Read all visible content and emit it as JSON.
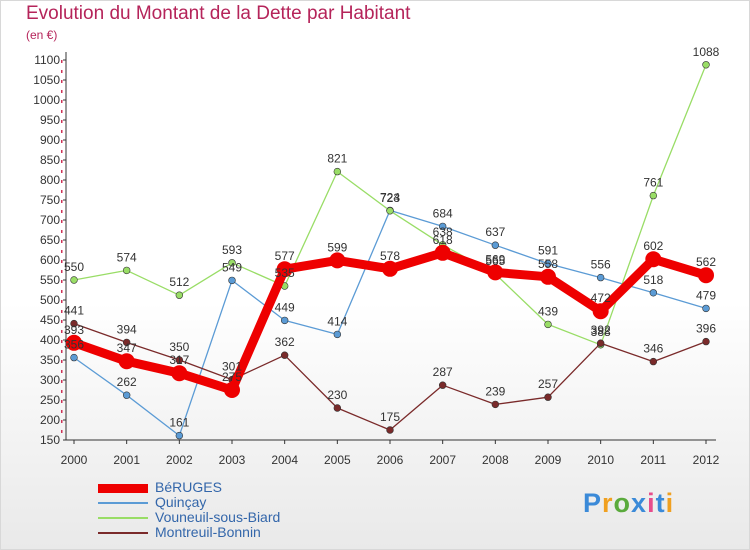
{
  "title": "Evolution du Montant de la Dette par Habitant",
  "subtitle": "(en €)",
  "logo": {
    "text": "Proxiti",
    "colors": [
      "#3b8ad8",
      "#f0a020",
      "#5aaa3c",
      "#3b8ad8",
      "#e84c8c",
      "#3b8ad8",
      "#f0a020"
    ]
  },
  "chart_data": {
    "type": "line",
    "x": [
      "2000",
      "2001",
      "2002",
      "2003",
      "2004",
      "2005",
      "2006",
      "2007",
      "2008",
      "2009",
      "2010",
      "2011",
      "2012"
    ],
    "ylim": [
      150,
      1100
    ],
    "yticks": [
      150,
      200,
      250,
      300,
      350,
      400,
      450,
      500,
      550,
      600,
      650,
      700,
      750,
      800,
      850,
      900,
      950,
      1000,
      1050,
      1100
    ],
    "grid": false,
    "legend_position": "bottom-left",
    "series": [
      {
        "name": "BéRUGES",
        "color": "#ee0000",
        "values": [
          393,
          347,
          317,
          275,
          577,
          599,
          578,
          618,
          569,
          558,
          472,
          602,
          562
        ]
      },
      {
        "name": "Quinçay",
        "color": "#5b9bd5",
        "values": [
          356,
          262,
          161,
          549,
          449,
          414,
          724,
          684,
          637,
          591,
          556,
          518,
          479
        ]
      },
      {
        "name": "Vouneuil-sous-Biard",
        "color": "#99dd66",
        "values": [
          550,
          574,
          512,
          593,
          535,
          821,
          723,
          638,
          565,
          439,
          388,
          761,
          1088
        ]
      },
      {
        "name": "Montreuil-Bonnin",
        "color": "#7a2a2a",
        "values": [
          441,
          394,
          350,
          301,
          362,
          230,
          175,
          287,
          239,
          257,
          392,
          346,
          396
        ]
      }
    ],
    "labels": [
      [
        "393",
        "347",
        "317",
        "275",
        "577",
        "599",
        "578",
        "618",
        "569",
        "558",
        "472",
        "602",
        "562"
      ],
      [
        "356",
        "262",
        "161",
        "549",
        "449",
        "414",
        "724",
        "684",
        "637",
        "591",
        "556",
        "518",
        "479"
      ],
      [
        "550",
        "574",
        "512",
        "593",
        "535",
        "821",
        "723",
        "638",
        "565",
        "439",
        "388",
        "761",
        "1088"
      ],
      [
        "441",
        "394",
        "350",
        "301",
        "362",
        "230",
        "175",
        "287",
        "239",
        "257",
        "392",
        "346",
        "396"
      ]
    ]
  }
}
